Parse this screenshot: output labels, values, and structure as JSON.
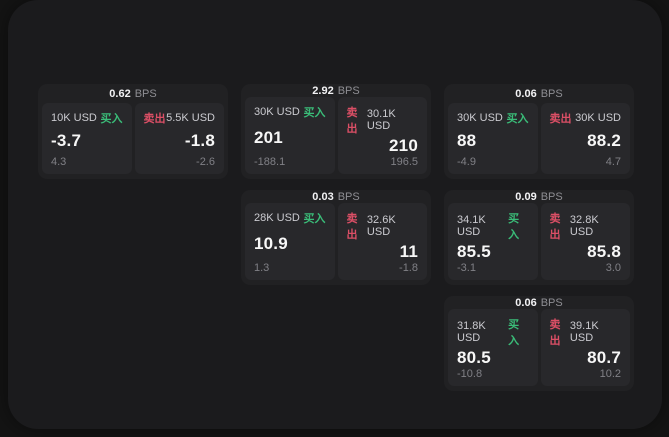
{
  "window": {
    "background": "#141414",
    "panel_background": "#1b1b1d"
  },
  "colors": {
    "buy_accent": "#3abc78",
    "sell_accent": "#dc4f66",
    "card_background": "#212123",
    "tile_background": "#28282b",
    "value_text": "#f7f7f7",
    "muted_text": "#808086"
  },
  "labels": {
    "bps_unit": "BPS",
    "buy": "买入",
    "sell": "卖出"
  },
  "cards": [
    {
      "grid": {
        "col": 1,
        "row": 1
      },
      "bps": "0.62",
      "bps_unit": "BPS",
      "buy": {
        "amount": "10K USD",
        "tag": "买入",
        "value": "-3.7",
        "sub": "4.3"
      },
      "sell": {
        "amount": "5.5K USD",
        "tag": "卖出",
        "value": "-1.8",
        "sub": "-2.6"
      }
    },
    {
      "grid": {
        "col": 2,
        "row": 1
      },
      "bps": "2.92",
      "bps_unit": "BPS",
      "buy": {
        "amount": "30K USD",
        "tag": "买入",
        "value": "201",
        "sub": "-188.1"
      },
      "sell": {
        "amount": "30.1K USD",
        "tag": "卖出",
        "value": "210",
        "sub": "196.5"
      }
    },
    {
      "grid": {
        "col": 3,
        "row": 1
      },
      "bps": "0.06",
      "bps_unit": "BPS",
      "buy": {
        "amount": "30K USD",
        "tag": "买入",
        "value": "88",
        "sub": "-4.9"
      },
      "sell": {
        "amount": "30K USD",
        "tag": "卖出",
        "value": "88.2",
        "sub": "4.7"
      }
    },
    {
      "grid": {
        "col": 2,
        "row": 2
      },
      "bps": "0.03",
      "bps_unit": "BPS",
      "buy": {
        "amount": "28K USD",
        "tag": "买入",
        "value": "10.9",
        "sub": "1.3"
      },
      "sell": {
        "amount": "32.6K USD",
        "tag": "卖出",
        "value": "11",
        "sub": "-1.8"
      }
    },
    {
      "grid": {
        "col": 3,
        "row": 2
      },
      "bps": "0.09",
      "bps_unit": "BPS",
      "buy": {
        "amount": "34.1K USD",
        "tag": "买入",
        "value": "85.5",
        "sub": "-3.1"
      },
      "sell": {
        "amount": "32.8K USD",
        "tag": "卖出",
        "value": "85.8",
        "sub": "3.0"
      }
    },
    {
      "grid": {
        "col": 3,
        "row": 3
      },
      "bps": "0.06",
      "bps_unit": "BPS",
      "buy": {
        "amount": "31.8K USD",
        "tag": "买入",
        "value": "80.5",
        "sub": "-10.8"
      },
      "sell": {
        "amount": "39.1K USD",
        "tag": "卖出",
        "value": "80.7",
        "sub": "10.2"
      }
    }
  ]
}
